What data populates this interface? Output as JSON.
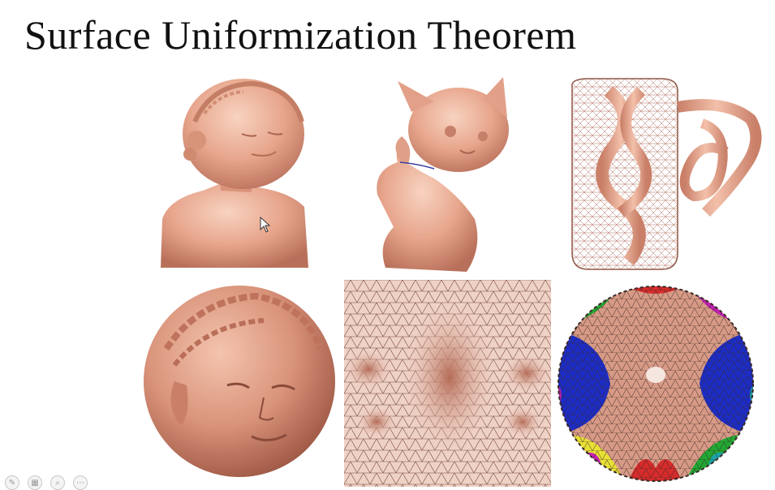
{
  "slide": {
    "title": "Surface Uniformization Theorem"
  },
  "colors": {
    "skin": "#e7a58c",
    "skin_shadow": "#b9705a",
    "skin_light": "#f6cdb9",
    "mesh_line": "#7a4a3e",
    "blue": "#1c2cc4",
    "green": "#22a733",
    "magenta": "#c61fb8",
    "yellow": "#e8e035",
    "red": "#d72b2b",
    "cyan": "#1aa3a8",
    "orange": "#e57d2b"
  },
  "panels": [
    {
      "name": "girl-bust-model",
      "icon": "3d-bust-icon"
    },
    {
      "name": "kitten-model",
      "icon": "3d-kitten-icon"
    },
    {
      "name": "knotted-mesh-model",
      "icon": "3d-mesh-icon"
    },
    {
      "name": "spherical-face-map",
      "icon": "sphere-map-icon"
    },
    {
      "name": "planar-mesh-map",
      "icon": "planar-mesh-icon"
    },
    {
      "name": "hyperbolic-disk-map",
      "icon": "hyperbolic-disk-icon"
    }
  ],
  "toolbar": {
    "buttons": [
      {
        "name": "pen-button",
        "icon": "pen-icon",
        "glyph": "✎"
      },
      {
        "name": "slides-button",
        "icon": "slides-icon",
        "glyph": "▦"
      },
      {
        "name": "zoom-button",
        "icon": "zoom-icon",
        "glyph": "⌕"
      },
      {
        "name": "more-button",
        "icon": "more-icon",
        "glyph": "⋯"
      }
    ]
  }
}
